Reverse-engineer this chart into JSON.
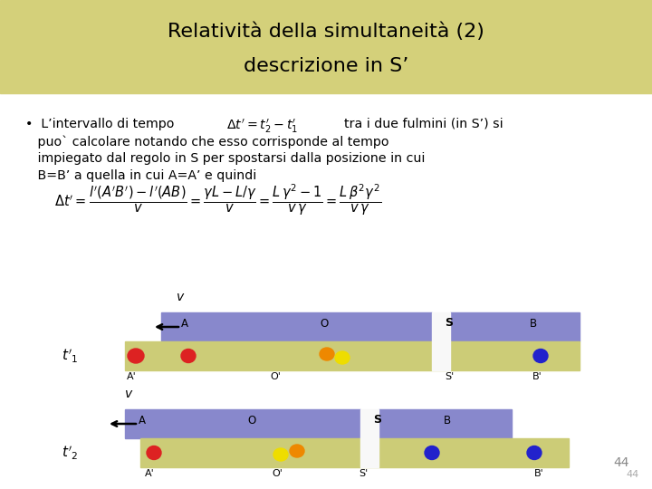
{
  "title_line1": "Relatività della simultaneità (2)",
  "title_line2": "descrizione in S’",
  "title_bg": "#d4d07a",
  "bg_color": "#ffffff",
  "bullet_line1a": "•  L’intervallo di tempo  ",
  "bullet_formula_inline": "$\\Delta t'= t_2'-t_1'$",
  "bullet_line1b": "  tra i due fulmini (in S’) si",
  "bullet_line2": "   puo` calcolare notando che esso corrisponde al tempo",
  "bullet_line3": "   impiegato dal regolo in S per spostarsi dalla posizione in cui",
  "bullet_line4": "   B=B’ a quella in cui A=A’ e quindi",
  "purple_color": "#8888cc",
  "yellow_bg_color": "#cccc77",
  "white_gap_color": "#f8f8f8",
  "page_num": "44"
}
